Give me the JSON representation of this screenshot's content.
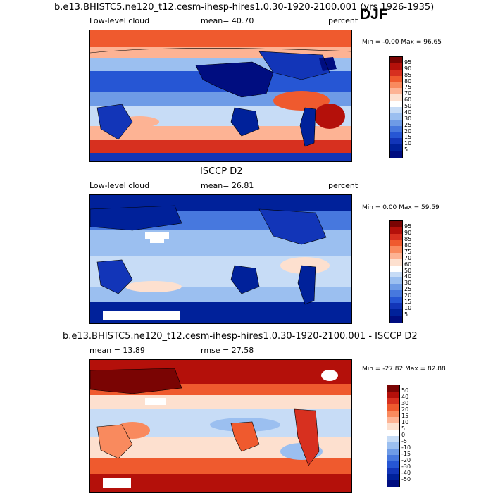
{
  "season": "DJF",
  "panels": [
    {
      "title": "b.e13.BHISTC5.ne120_t12.cesm-ihesp-hires1.0.30-1920-2100.001 (yrs 1926-1935)",
      "left": "Low-level cloud",
      "center": "mean=  40.70",
      "right": "percent",
      "minmax": "Min =  -0.00 Max =  96.65",
      "colorbar": [
        "95",
        "90",
        "85",
        "80",
        "75",
        "70",
        "60",
        "50",
        "40",
        "30",
        "25",
        "20",
        "15",
        "10",
        "5"
      ],
      "colors": [
        "#7a0403",
        "#b4100a",
        "#d7301f",
        "#ef5a2e",
        "#f98a5e",
        "#fdb394",
        "#fde0cf",
        "#ffffff",
        "#c7dcf6",
        "#9bbff0",
        "#6e9be6",
        "#4778de",
        "#2656d4",
        "#1235b8",
        "#00219a",
        "#000d80"
      ]
    },
    {
      "title": "ISCCP D2",
      "left": "Low-level cloud",
      "center": "mean=  26.81",
      "right": "percent",
      "minmax": "Min =   0.00 Max =  59.59",
      "colorbar": [
        "95",
        "90",
        "85",
        "80",
        "75",
        "70",
        "60",
        "50",
        "40",
        "30",
        "25",
        "20",
        "15",
        "10",
        "5"
      ],
      "colors": [
        "#7a0403",
        "#b4100a",
        "#d7301f",
        "#ef5a2e",
        "#f98a5e",
        "#fdb394",
        "#fde0cf",
        "#ffffff",
        "#c7dcf6",
        "#9bbff0",
        "#6e9be6",
        "#4778de",
        "#2656d4",
        "#1235b8",
        "#00219a",
        "#000d80"
      ]
    },
    {
      "title": "b.e13.BHISTC5.ne120_t12.cesm-ihesp-hires1.0.30-1920-2100.001 - ISCCP D2",
      "left": "mean =  13.89",
      "center": "rmse =  27.58",
      "right": "",
      "minmax": "Min = -27.82 Max =  82.88",
      "colorbar": [
        "50",
        "40",
        "30",
        "20",
        "15",
        "10",
        "5",
        "0",
        "-5",
        "-10",
        "-15",
        "-20",
        "-30",
        "-40",
        "-50"
      ],
      "colors": [
        "#7a0403",
        "#b4100a",
        "#d7301f",
        "#ef5a2e",
        "#f98a5e",
        "#fdb394",
        "#fde0cf",
        "#ffffff",
        "#c7dcf6",
        "#9bbff0",
        "#6e9be6",
        "#4778de",
        "#2656d4",
        "#1235b8",
        "#00219a",
        "#000d80"
      ]
    }
  ],
  "chart_data": [
    {
      "type": "heatmap",
      "title": "b.e13.BHISTC5.ne120_t12.cesm-ihesp-hires1.0.30-1920-2100.001 (yrs 1926-1935)",
      "variable": "Low-level cloud",
      "units": "percent",
      "mean": 40.7,
      "min": -0.0,
      "max": 96.65,
      "contour_levels": [
        5,
        10,
        15,
        20,
        25,
        30,
        40,
        50,
        60,
        70,
        75,
        80,
        85,
        90,
        95
      ]
    },
    {
      "type": "heatmap",
      "title": "ISCCP D2",
      "variable": "Low-level cloud",
      "units": "percent",
      "mean": 26.81,
      "min": 0.0,
      "max": 59.59,
      "contour_levels": [
        5,
        10,
        15,
        20,
        25,
        30,
        40,
        50,
        60,
        70,
        75,
        80,
        85,
        90,
        95
      ]
    },
    {
      "type": "heatmap",
      "title": "b.e13.BHISTC5.ne120_t12.cesm-ihesp-hires1.0.30-1920-2100.001 - ISCCP D2",
      "mean": 13.89,
      "rmse": 27.58,
      "min": -27.82,
      "max": 82.88,
      "contour_levels": [
        -50,
        -40,
        -30,
        -20,
        -15,
        -10,
        -5,
        0,
        5,
        10,
        15,
        20,
        30,
        40,
        50
      ]
    }
  ]
}
